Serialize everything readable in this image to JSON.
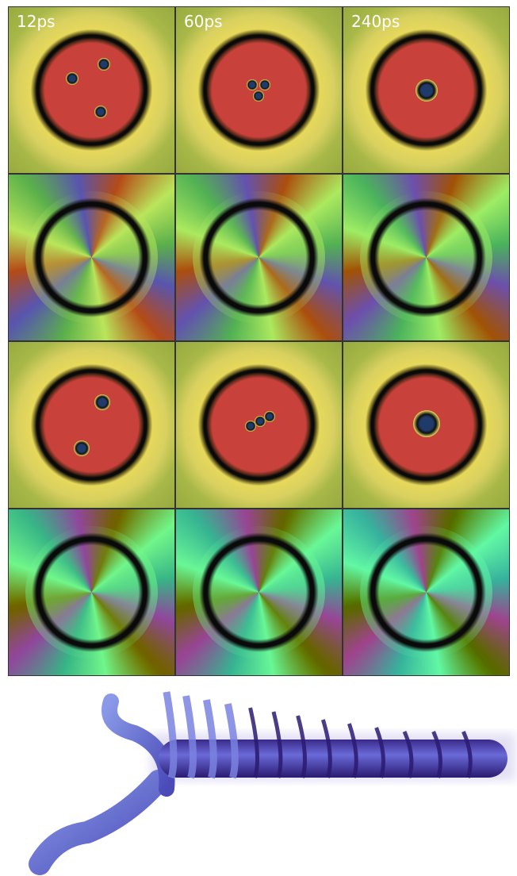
{
  "labels": [
    "12ps",
    "60ps",
    "240ps"
  ]
}
